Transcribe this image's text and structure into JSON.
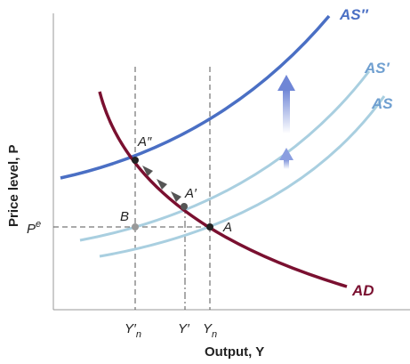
{
  "axes": {
    "y_title": "Price level, P",
    "x_title": "Output, Y"
  },
  "curves": {
    "as2": "AS″",
    "as1": "AS′",
    "as0": "AS",
    "ad": "AD"
  },
  "points": {
    "a2": "A″",
    "a1": "A′",
    "a0": "A",
    "b": "B"
  },
  "ticks": {
    "pe": {
      "base": "P",
      "sup": "e"
    },
    "yn_prime": {
      "base": "Y′",
      "sub": "n"
    },
    "y_prime": "Y′",
    "yn": {
      "base": "Y",
      "sub": "n"
    }
  }
}
